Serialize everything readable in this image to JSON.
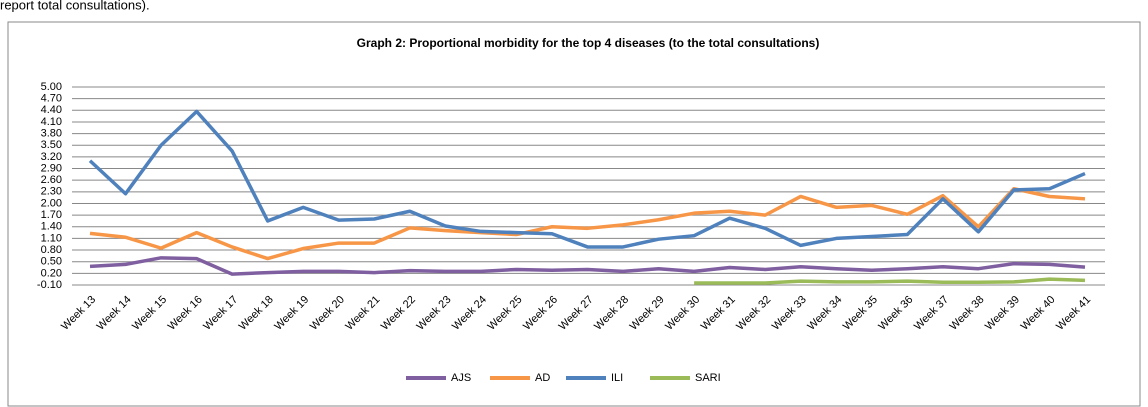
{
  "header_text": "report total consultations).",
  "chart_data": {
    "type": "line",
    "title": "Graph 2: Proportional morbidity for the top 4 diseases (to the total consultations)",
    "categories": [
      "Week 13",
      "Week 14",
      "Week 15",
      "Week 16",
      "Week 17",
      "Week 18",
      "Week 19",
      "Week 20",
      "Week 21",
      "Week 22",
      "Week 23",
      "Week 24",
      "Week 25",
      "Week 26",
      "Week 27",
      "Week 28",
      "Week 29",
      "Week 30",
      "Week 31",
      "Week 32",
      "Week 33",
      "Week 34",
      "Week 35",
      "Week 36",
      "Week 37",
      "Week 38",
      "Week 39",
      "Week 40",
      "Week 41"
    ],
    "series": [
      {
        "name": "AJS",
        "color": "#7f5fa0",
        "values": [
          0.38,
          0.43,
          0.6,
          0.58,
          0.18,
          0.22,
          0.25,
          0.25,
          0.22,
          0.27,
          0.25,
          0.25,
          0.3,
          0.28,
          0.3,
          0.25,
          0.32,
          0.25,
          0.35,
          0.3,
          0.37,
          0.32,
          0.28,
          0.32,
          0.37,
          0.32,
          0.45,
          0.43,
          0.36
        ]
      },
      {
        "name": "AD",
        "color": "#f79646",
        "values": [
          1.23,
          1.13,
          0.85,
          1.25,
          0.88,
          0.58,
          0.84,
          0.98,
          0.98,
          1.37,
          1.3,
          1.25,
          1.2,
          1.4,
          1.36,
          1.45,
          1.58,
          1.75,
          1.8,
          1.7,
          2.18,
          1.9,
          1.95,
          1.72,
          2.2,
          1.4,
          2.38,
          2.18,
          2.12
        ]
      },
      {
        "name": "ILI",
        "color": "#4f81bd",
        "values": [
          3.1,
          2.25,
          3.5,
          4.37,
          3.35,
          1.55,
          1.9,
          1.57,
          1.6,
          1.8,
          1.42,
          1.28,
          1.25,
          1.22,
          0.88,
          0.88,
          1.08,
          1.17,
          1.62,
          1.36,
          0.92,
          1.1,
          1.15,
          1.2,
          2.12,
          1.27,
          2.35,
          2.38,
          2.77
        ]
      },
      {
        "name": "SARI",
        "color": "#9bbb59",
        "values": [
          null,
          null,
          null,
          null,
          null,
          null,
          null,
          null,
          null,
          null,
          null,
          null,
          null,
          null,
          null,
          null,
          null,
          -0.05,
          -0.05,
          -0.05,
          0.0,
          -0.02,
          -0.02,
          0.0,
          -0.03,
          -0.03,
          -0.02,
          0.05,
          0.02
        ]
      }
    ],
    "ylim": [
      -0.1,
      5.0
    ],
    "yticks": [
      {
        "value": -0.1,
        "label": "-0.10"
      },
      {
        "value": 0.2,
        "label": "0.20"
      },
      {
        "value": 0.5,
        "label": "0.50"
      },
      {
        "value": 0.8,
        "label": "0.80"
      },
      {
        "value": 1.1,
        "label": "1.10"
      },
      {
        "value": 1.4,
        "label": "1.40"
      },
      {
        "value": 1.7,
        "label": "1.70"
      },
      {
        "value": 2.0,
        "label": "2.00"
      },
      {
        "value": 2.3,
        "label": "2.30"
      },
      {
        "value": 2.6,
        "label": "2.60"
      },
      {
        "value": 2.9,
        "label": "2.90"
      },
      {
        "value": 3.2,
        "label": "3.20"
      },
      {
        "value": 3.5,
        "label": "3.50"
      },
      {
        "value": 3.8,
        "label": "3.80"
      },
      {
        "value": 4.1,
        "label": "4.10"
      },
      {
        "value": 4.4,
        "label": "4.40"
      },
      {
        "value": 4.7,
        "label": "4.70"
      },
      {
        "value": 5.0,
        "label": "5.00"
      }
    ],
    "grid": true,
    "legend": "bottom"
  }
}
